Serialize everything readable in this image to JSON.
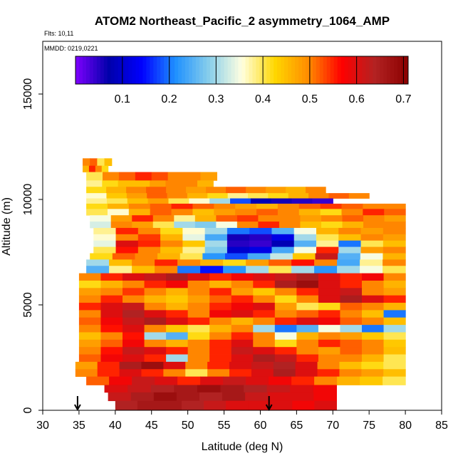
{
  "chart_data": {
    "type": "heatmap",
    "title": "ATOM2 Northeast_Pacific_2 asymmetry_1064_AMP",
    "flights_note": "Flts: 10,11",
    "date_note": "MMDD: 0219,0221",
    "xlabel": "Latitude (deg N)",
    "ylabel": "Altitude (m)",
    "xlim": [
      30,
      85
    ],
    "ylim": [
      0,
      17500
    ],
    "x_ticks": [
      "30",
      "35",
      "40",
      "45",
      "50",
      "55",
      "60",
      "65",
      "70",
      "75",
      "80",
      "85"
    ],
    "y_ticks": [
      "0",
      "5000",
      "10000",
      "15000"
    ],
    "y_tick_values": [
      0,
      5000,
      10000,
      15000
    ],
    "colorbar": {
      "range": [
        0.0,
        0.71
      ],
      "ticks": [
        "0.1",
        "0.2",
        "0.3",
        "0.4",
        "0.5",
        "0.6",
        "0.7"
      ],
      "tick_values": [
        0.1,
        0.2,
        0.3,
        0.4,
        0.5,
        0.6,
        0.7
      ],
      "colors": [
        "#7f00ff",
        "#0000aa",
        "#0000ff",
        "#1e90ff",
        "#87ceeb",
        "#ffffe0",
        "#ffd700",
        "#ff8c00",
        "#ff0000",
        "#b22222",
        "#8b0000"
      ]
    },
    "arrows_latitude": [
      34.8,
      61.2
    ],
    "rows": [
      {
        "alt_bottom": 11600,
        "alt_top": 11950,
        "lat_start": 35.5,
        "lat_end": 39.5,
        "values": [
          0.5,
          0.52,
          0.4,
          0.45
        ]
      },
      {
        "alt_bottom": 11300,
        "alt_top": 11600,
        "lat_start": 35.5,
        "lat_end": 39.0,
        "values": [
          0.46,
          0.55,
          0.5,
          0.42
        ]
      },
      {
        "alt_bottom": 10900,
        "alt_top": 11300,
        "lat_start": 36.0,
        "lat_end": 54.0,
        "values": [
          0.4,
          0.5,
          0.52,
          0.55,
          0.53,
          0.5,
          0.5,
          0.48
        ]
      },
      {
        "alt_bottom": 10600,
        "alt_top": 10900,
        "lat_start": 36.0,
        "lat_end": 53.5,
        "values": [
          0.38,
          0.42,
          0.45,
          0.45,
          0.48,
          0.5,
          0.5,
          0.46
        ]
      },
      {
        "alt_bottom": 10300,
        "alt_top": 10600,
        "lat_start": 36.0,
        "lat_end": 69.0,
        "values": [
          0.42,
          0.46,
          0.5,
          0.52,
          0.5,
          0.48,
          0.5,
          0.52,
          0.5,
          0.48,
          0.46,
          0.5
        ]
      },
      {
        "alt_bottom": 10050,
        "alt_top": 10300,
        "lat_start": 36.0,
        "lat_end": 75.0,
        "values": [
          0.36,
          0.44,
          0.48,
          0.52,
          0.5,
          0.46,
          0.42,
          0.38,
          0.4,
          0.42,
          0.46,
          0.5,
          0.52,
          0.5
        ]
      },
      {
        "alt_bottom": 9800,
        "alt_top": 10050,
        "lat_start": 36.0,
        "lat_end": 70.0,
        "values": [
          0.38,
          0.4,
          0.45,
          0.48,
          0.4,
          0.36,
          0.3,
          0.18,
          0.08,
          0.06,
          0.05,
          0.04
        ]
      },
      {
        "alt_bottom": 9550,
        "alt_top": 9800,
        "lat_start": 36.0,
        "lat_end": 80.0,
        "values": [
          0.42,
          0.46,
          0.5,
          0.52,
          0.55,
          0.52,
          0.5,
          0.48,
          0.46,
          0.5,
          0.52,
          0.54,
          0.52,
          0.5,
          0.5
        ]
      },
      {
        "alt_bottom": 9250,
        "alt_top": 9550,
        "lat_start": 36.0,
        "lat_end": 80.0,
        "values": [
          0.4,
          0.36,
          0.46,
          0.52,
          0.5,
          0.45,
          0.48,
          0.5,
          0.52,
          0.5,
          0.46,
          0.42,
          0.5,
          0.55,
          0.52
        ]
      },
      {
        "alt_bottom": 8950,
        "alt_top": 9250,
        "lat_start": 36.5,
        "lat_end": 80.0,
        "values": [
          0.35,
          0.48,
          0.55,
          0.5,
          0.38,
          0.46,
          0.52,
          0.54,
          0.5,
          0.5,
          0.48,
          0.5,
          0.52,
          0.5,
          0.48
        ]
      },
      {
        "alt_bottom": 8650,
        "alt_top": 8950,
        "lat_start": 36.5,
        "lat_end": 80.0,
        "values": [
          0.33,
          0.5,
          0.48,
          0.4,
          0.3,
          0.28,
          0.35,
          0.5,
          0.55,
          0.5,
          0.45,
          0.42,
          0.46,
          0.5,
          0.5
        ]
      },
      {
        "alt_bottom": 8350,
        "alt_top": 8650,
        "lat_start": 37.0,
        "lat_end": 80.0,
        "values": [
          0.38,
          0.55,
          0.5,
          0.42,
          0.36,
          0.3,
          0.2,
          0.18,
          0.25,
          0.35,
          0.46,
          0.5,
          0.48,
          0.5
        ]
      },
      {
        "alt_bottom": 8050,
        "alt_top": 8350,
        "lat_start": 37.0,
        "lat_end": 80.0,
        "values": [
          0.36,
          0.5,
          0.54,
          0.46,
          0.34,
          0.24,
          0.06,
          0.05,
          0.12,
          0.3,
          0.4,
          0.45,
          0.5,
          0.48
        ]
      },
      {
        "alt_bottom": 7750,
        "alt_top": 8050,
        "lat_start": 37.0,
        "lat_end": 80.0,
        "values": [
          0.34,
          0.6,
          0.55,
          0.5,
          0.44,
          0.3,
          0.05,
          0.04,
          0.08,
          0.25,
          0.38,
          0.2,
          0.4,
          0.45
        ]
      },
      {
        "alt_bottom": 7450,
        "alt_top": 7750,
        "lat_start": 37.0,
        "lat_end": 80.0,
        "values": [
          0.4,
          0.56,
          0.5,
          0.45,
          0.38,
          0.28,
          0.1,
          0.12,
          0.24,
          0.35,
          0.55,
          0.3,
          0.48,
          0.5
        ]
      },
      {
        "alt_bottom": 7150,
        "alt_top": 7450,
        "lat_start": 36.5,
        "lat_end": 80.0,
        "values": [
          0.42,
          0.52,
          0.5,
          0.46,
          0.4,
          0.22,
          0.18,
          0.24,
          0.32,
          0.44,
          0.62,
          0.25,
          0.35,
          0.46
        ]
      },
      {
        "alt_bottom": 6850,
        "alt_top": 7150,
        "lat_start": 36.0,
        "lat_end": 80.0,
        "values": [
          0.3,
          0.45,
          0.5,
          0.55,
          0.5,
          0.46,
          0.42,
          0.48,
          0.52,
          0.56,
          0.5,
          0.24,
          0.38,
          0.5
        ]
      },
      {
        "alt_bottom": 6500,
        "alt_top": 6850,
        "lat_start": 36.0,
        "lat_end": 80.0,
        "values": [
          0.25,
          0.38,
          0.45,
          0.5,
          0.2,
          0.15,
          0.22,
          0.3,
          0.4,
          0.3,
          0.22,
          0.3,
          0.35,
          0.4
        ]
      },
      {
        "alt_bottom": 6150,
        "alt_top": 6500,
        "lat_start": 35.0,
        "lat_end": 80.0,
        "values": [
          0.5,
          0.55,
          0.6,
          0.62,
          0.65,
          0.6,
          0.55,
          0.58,
          0.6,
          0.62,
          0.65,
          0.6,
          0.55,
          0.58,
          0.5
        ]
      },
      {
        "alt_bottom": 5800,
        "alt_top": 6150,
        "lat_start": 35.0,
        "lat_end": 80.0,
        "values": [
          0.42,
          0.46,
          0.5,
          0.55,
          0.58,
          0.5,
          0.46,
          0.5,
          0.55,
          0.65,
          0.68,
          0.6,
          0.55,
          0.5,
          0.46
        ]
      },
      {
        "alt_bottom": 5450,
        "alt_top": 5800,
        "lat_start": 35.0,
        "lat_end": 80.0,
        "values": [
          0.48,
          0.5,
          0.54,
          0.5,
          0.46,
          0.5,
          0.55,
          0.48,
          0.44,
          0.5,
          0.55,
          0.6,
          0.62,
          0.5,
          0.48
        ]
      },
      {
        "alt_bottom": 5100,
        "alt_top": 5450,
        "lat_start": 35.0,
        "lat_end": 80.0,
        "values": [
          0.5,
          0.55,
          0.5,
          0.46,
          0.44,
          0.48,
          0.52,
          0.55,
          0.5,
          0.42,
          0.5,
          0.6,
          0.65,
          0.6,
          0.55
        ]
      },
      {
        "alt_bottom": 4750,
        "alt_top": 5100,
        "lat_start": 35.0,
        "lat_end": 80.0,
        "values": [
          0.55,
          0.6,
          0.62,
          0.5,
          0.46,
          0.5,
          0.55,
          0.58,
          0.6,
          0.48,
          0.4,
          0.42,
          0.52,
          0.5,
          0.46
        ]
      },
      {
        "alt_bottom": 4400,
        "alt_top": 4750,
        "lat_start": 35.0,
        "lat_end": 80.0,
        "values": [
          0.5,
          0.6,
          0.64,
          0.6,
          0.55,
          0.5,
          0.58,
          0.6,
          0.55,
          0.5,
          0.52,
          0.55,
          0.5,
          0.45,
          0.2
        ]
      },
      {
        "alt_bottom": 4050,
        "alt_top": 4400,
        "lat_start": 35.0,
        "lat_end": 80.0,
        "values": [
          0.52,
          0.58,
          0.62,
          0.65,
          0.6,
          0.55,
          0.5,
          0.46,
          0.5,
          0.55,
          0.6,
          0.58,
          0.52,
          0.5,
          0.45
        ]
      },
      {
        "alt_bottom": 3700,
        "alt_top": 4050,
        "lat_start": 35.0,
        "lat_end": 80.0,
        "values": [
          0.5,
          0.56,
          0.6,
          0.5,
          0.44,
          0.4,
          0.46,
          0.5,
          0.3,
          0.2,
          0.25,
          0.35,
          0.3,
          0.2,
          0.3
        ]
      },
      {
        "alt_bottom": 3350,
        "alt_top": 3700,
        "lat_start": 35.0,
        "lat_end": 80.0,
        "values": [
          0.45,
          0.5,
          0.56,
          0.3,
          0.25,
          0.42,
          0.5,
          0.55,
          0.5,
          0.35,
          0.46,
          0.5,
          0.48,
          0.44,
          0.4
        ]
      },
      {
        "alt_bottom": 3000,
        "alt_top": 3350,
        "lat_start": 35.0,
        "lat_end": 80.0,
        "values": [
          0.48,
          0.52,
          0.58,
          0.5,
          0.46,
          0.5,
          0.55,
          0.6,
          0.5,
          0.42,
          0.5,
          0.55,
          0.52,
          0.5,
          0.44
        ]
      },
      {
        "alt_bottom": 2650,
        "alt_top": 3000,
        "lat_start": 35.0,
        "lat_end": 80.0,
        "values": [
          0.5,
          0.56,
          0.62,
          0.6,
          0.55,
          0.5,
          0.55,
          0.62,
          0.6,
          0.55,
          0.5,
          0.48,
          0.52,
          0.5,
          0.45
        ]
      },
      {
        "alt_bottom": 2300,
        "alt_top": 2650,
        "lat_start": 35.0,
        "lat_end": 80.0,
        "values": [
          0.52,
          0.58,
          0.6,
          0.55,
          0.3,
          0.5,
          0.55,
          0.6,
          0.65,
          0.62,
          0.55,
          0.5,
          0.5,
          0.46,
          0.4
        ]
      },
      {
        "alt_bottom": 1950,
        "alt_top": 2300,
        "lat_start": 34.5,
        "lat_end": 80.0,
        "values": [
          0.48,
          0.55,
          0.65,
          0.68,
          0.6,
          0.5,
          0.55,
          0.6,
          0.62,
          0.64,
          0.6,
          0.5,
          0.45,
          0.42,
          0.4
        ]
      },
      {
        "alt_bottom": 1600,
        "alt_top": 1950,
        "lat_start": 34.5,
        "lat_end": 80.0,
        "values": [
          0.5,
          0.55,
          0.6,
          0.55,
          0.5,
          0.4,
          0.5,
          0.55,
          0.6,
          0.65,
          0.6,
          0.55,
          0.5,
          0.48,
          0.45
        ]
      },
      {
        "alt_bottom": 1200,
        "alt_top": 1600,
        "lat_start": 36.0,
        "lat_end": 80.0,
        "values": [
          0.52,
          0.58,
          0.62,
          0.6,
          0.55,
          0.6,
          0.62,
          0.6,
          0.58,
          0.55,
          0.5,
          0.46,
          0.44,
          0.4
        ]
      },
      {
        "alt_bottom": 850,
        "alt_top": 1200,
        "lat_start": 38.5,
        "lat_end": 70.5,
        "values": [
          0.6,
          0.62,
          0.64,
          0.66,
          0.68,
          0.66,
          0.64,
          0.62,
          0.6,
          0.58
        ]
      },
      {
        "alt_bottom": 450,
        "alt_top": 850,
        "lat_start": 39.0,
        "lat_end": 70.5,
        "values": [
          0.62,
          0.65,
          0.68,
          0.66,
          0.64,
          0.66,
          0.62,
          0.6,
          0.6,
          0.58
        ]
      },
      {
        "alt_bottom": 0,
        "alt_top": 450,
        "lat_start": 40.0,
        "lat_end": 70.5,
        "values": [
          0.64,
          0.66,
          0.66,
          0.64,
          0.62,
          0.6,
          0.6,
          0.6,
          0.58,
          0.6
        ]
      }
    ]
  }
}
